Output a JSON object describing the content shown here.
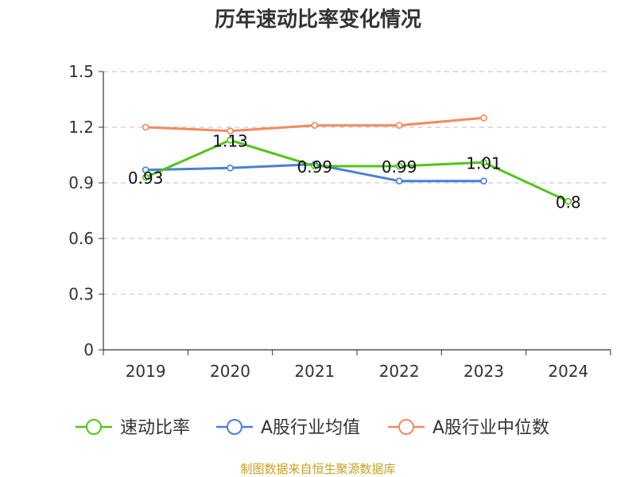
{
  "chart_data": {
    "type": "line",
    "title": "历年速动比率变化情况",
    "xlabel": "",
    "ylabel": "",
    "categories": [
      "2019",
      "2020",
      "2021",
      "2022",
      "2023",
      "2024"
    ],
    "ylim": [
      0,
      1.5
    ],
    "yticks": [
      "0",
      "0.3",
      "0.6",
      "0.9",
      "1.2",
      "1.5"
    ],
    "grid": true,
    "legend_position": "bottom",
    "series": [
      {
        "name": "速动比率",
        "color": "#52c41a",
        "values": [
          0.93,
          1.13,
          0.99,
          0.99,
          1.01,
          0.8
        ],
        "labels": [
          "0.93",
          "1.13",
          "0.99",
          "0.99",
          "1.01",
          "0.8"
        ]
      },
      {
        "name": "A股行业均值",
        "color": "#4a7fd8",
        "values": [
          0.97,
          0.98,
          1.0,
          0.91,
          0.91,
          null
        ]
      },
      {
        "name": "A股行业中位数",
        "color": "#f4895f",
        "values": [
          1.2,
          1.18,
          1.21,
          1.21,
          1.25,
          null
        ]
      }
    ],
    "source": "制图数据来自恒生聚源数据库"
  }
}
